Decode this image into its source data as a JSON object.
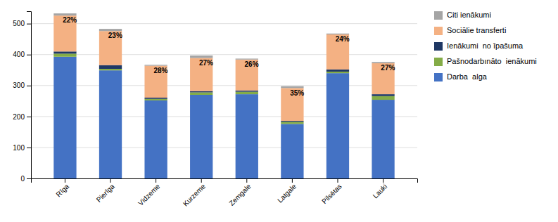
{
  "chart_data": {
    "type": "bar",
    "stacked": true,
    "categories": [
      "Rīga",
      "Pierīga",
      "Vidzeme",
      "Kurzeme",
      "Zemgale",
      "Latgale",
      "Pilsētas",
      "Lauki"
    ],
    "series": [
      {
        "name": "Darba  alga",
        "color": "#4472C4",
        "values": [
          393,
          349,
          252,
          270,
          272,
          176,
          340,
          254
        ]
      },
      {
        "name": "Pašnodarbınāto  ienākumi",
        "color": "#84AC47",
        "values": [
          10,
          5,
          5,
          8,
          8,
          7,
          5,
          12
        ]
      },
      {
        "name": "Ienākumi  no īpašuma",
        "color": "#1F3864",
        "values": [
          7,
          12,
          4,
          4,
          4,
          3,
          7,
          6
        ]
      },
      {
        "name": "Sociālie transferti",
        "color": "#F4B183",
        "values": [
          116,
          110,
          103,
          107,
          100,
          106,
          113,
          100
        ]
      },
      {
        "name": "Citi ienākumi",
        "color": "#A5A5A5",
        "values": [
          7,
          7,
          3,
          8,
          3,
          6,
          3,
          4
        ]
      }
    ],
    "annotations": [
      "22%",
      "23%",
      "28%",
      "27%",
      "26%",
      "35%",
      "24%",
      "27%"
    ],
    "ylim": [
      0,
      540
    ],
    "yticks": [
      0,
      100,
      200,
      300,
      400,
      500
    ],
    "grid": true,
    "legend": "right"
  }
}
